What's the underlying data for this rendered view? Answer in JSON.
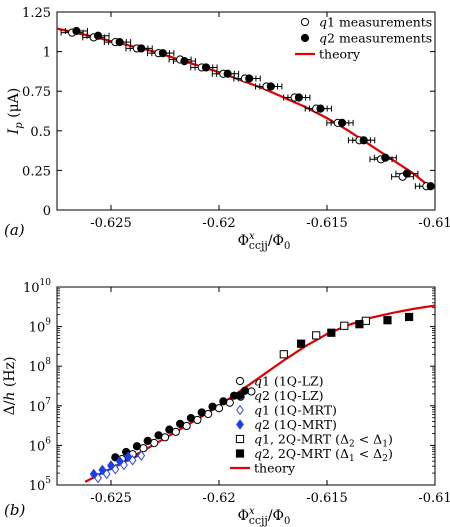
{
  "chart_data": [
    {
      "panel_label": "(a)",
      "type": "scatter",
      "xlabel": "Φ^x_ccjj/Φ0",
      "ylabel": "I_p (μA)",
      "xlim": [
        -0.6275,
        -0.61
      ],
      "ylim": [
        0,
        1.25
      ],
      "xticks": [
        -0.625,
        -0.62,
        -0.615,
        -0.61
      ],
      "xtick_labels": [
        "-0.625",
        "-0.62",
        "-0.615",
        "-0.61"
      ],
      "yticks": [
        0,
        0.25,
        0.5,
        0.75,
        1,
        1.25
      ],
      "ytick_labels": [
        "0",
        "0.25",
        "0.5",
        "0.75",
        "1",
        "1.25"
      ],
      "grid": false,
      "legend_position": "top-right",
      "series": [
        {
          "name": "q1 measurements",
          "marker": "open-circle",
          "color": "#000000",
          "points": [
            {
              "x": -0.6268,
              "y": 1.12
            },
            {
              "x": -0.6258,
              "y": 1.09
            },
            {
              "x": -0.6248,
              "y": 1.06
            },
            {
              "x": -0.6238,
              "y": 1.02
            },
            {
              "x": -0.6228,
              "y": 0.99
            },
            {
              "x": -0.6218,
              "y": 0.95
            },
            {
              "x": -0.6208,
              "y": 0.9
            },
            {
              "x": -0.6198,
              "y": 0.86
            },
            {
              "x": -0.6188,
              "y": 0.83
            },
            {
              "x": -0.6178,
              "y": 0.78
            },
            {
              "x": -0.6165,
              "y": 0.71
            },
            {
              "x": -0.6155,
              "y": 0.64
            },
            {
              "x": -0.6145,
              "y": 0.55
            },
            {
              "x": -0.6135,
              "y": 0.44
            },
            {
              "x": -0.6125,
              "y": 0.32
            },
            {
              "x": -0.6115,
              "y": 0.21
            },
            {
              "x": -0.6104,
              "y": 0.15
            }
          ]
        },
        {
          "name": "q2 measurements",
          "marker": "filled-circle",
          "color": "#000000",
          "points": [
            {
              "x": -0.6266,
              "y": 1.13
            },
            {
              "x": -0.6256,
              "y": 1.1
            },
            {
              "x": -0.6246,
              "y": 1.06
            },
            {
              "x": -0.6236,
              "y": 1.02
            },
            {
              "x": -0.6226,
              "y": 0.99
            },
            {
              "x": -0.6216,
              "y": 0.94
            },
            {
              "x": -0.6206,
              "y": 0.9
            },
            {
              "x": -0.6196,
              "y": 0.86
            },
            {
              "x": -0.6186,
              "y": 0.83
            },
            {
              "x": -0.6176,
              "y": 0.78
            },
            {
              "x": -0.6163,
              "y": 0.71
            },
            {
              "x": -0.6153,
              "y": 0.64
            },
            {
              "x": -0.6143,
              "y": 0.55
            },
            {
              "x": -0.6133,
              "y": 0.44
            },
            {
              "x": -0.6123,
              "y": 0.33
            },
            {
              "x": -0.6113,
              "y": 0.23
            },
            {
              "x": -0.6102,
              "y": 0.15
            }
          ]
        },
        {
          "name": "theory",
          "line": true,
          "color": "#e00000",
          "points": [
            {
              "x": -0.6275,
              "y": 1.145
            },
            {
              "x": -0.626,
              "y": 1.1
            },
            {
              "x": -0.6245,
              "y": 1.05
            },
            {
              "x": -0.623,
              "y": 1.0
            },
            {
              "x": -0.6215,
              "y": 0.935
            },
            {
              "x": -0.62,
              "y": 0.87
            },
            {
              "x": -0.619,
              "y": 0.82
            },
            {
              "x": -0.618,
              "y": 0.77
            },
            {
              "x": -0.617,
              "y": 0.71
            },
            {
              "x": -0.616,
              "y": 0.65
            },
            {
              "x": -0.615,
              "y": 0.58
            },
            {
              "x": -0.614,
              "y": 0.5
            },
            {
              "x": -0.613,
              "y": 0.41
            },
            {
              "x": -0.612,
              "y": 0.32
            },
            {
              "x": -0.611,
              "y": 0.23
            },
            {
              "x": -0.6105,
              "y": 0.175
            },
            {
              "x": -0.61,
              "y": 0.14
            }
          ]
        }
      ]
    },
    {
      "panel_label": "(b)",
      "type": "scatter",
      "xlabel": "Φ^x_ccjj/Φ0",
      "ylabel": "Δ/h (Hz)",
      "yscale": "log",
      "xlim": [
        -0.6275,
        -0.61
      ],
      "ylim": [
        100000,
        10000000000
      ],
      "xticks": [
        -0.625,
        -0.62,
        -0.615,
        -0.61
      ],
      "xtick_labels": [
        "-0.625",
        "-0.62",
        "-0.615",
        "-0.61"
      ],
      "yticks": [
        100000,
        1000000,
        10000000,
        100000000,
        1000000000,
        10000000000
      ],
      "ytick_exponents": [
        "5",
        "6",
        "7",
        "8",
        "9",
        "10"
      ],
      "ytick_base": "10",
      "grid": false,
      "legend_position": "bottom-right",
      "series": [
        {
          "name": "q1 (1Q-LZ)",
          "marker": "open-circle",
          "color": "#000000",
          "points": [
            {
              "x": -0.6245,
              "y": 450000
            },
            {
              "x": -0.624,
              "y": 600000
            },
            {
              "x": -0.6235,
              "y": 850000
            },
            {
              "x": -0.623,
              "y": 1150000
            },
            {
              "x": -0.6225,
              "y": 1600000
            },
            {
              "x": -0.622,
              "y": 2200000
            },
            {
              "x": -0.6215,
              "y": 3100000
            },
            {
              "x": -0.621,
              "y": 4400000
            },
            {
              "x": -0.6205,
              "y": 6200000
            },
            {
              "x": -0.62,
              "y": 8700000
            },
            {
              "x": -0.6195,
              "y": 12000000
            },
            {
              "x": -0.619,
              "y": 17000000
            },
            {
              "x": -0.6185,
              "y": 23000000
            }
          ]
        },
        {
          "name": "q2 (1Q-LZ)",
          "marker": "filled-circle",
          "color": "#000000",
          "points": [
            {
              "x": -0.6248,
              "y": 500000
            },
            {
              "x": -0.6243,
              "y": 680000
            },
            {
              "x": -0.6238,
              "y": 950000
            },
            {
              "x": -0.6233,
              "y": 1300000
            },
            {
              "x": -0.6228,
              "y": 1800000
            },
            {
              "x": -0.6223,
              "y": 2500000
            },
            {
              "x": -0.6218,
              "y": 3500000
            },
            {
              "x": -0.6213,
              "y": 4900000
            },
            {
              "x": -0.6208,
              "y": 6800000
            },
            {
              "x": -0.6203,
              "y": 9500000
            },
            {
              "x": -0.6198,
              "y": 13000000
            },
            {
              "x": -0.6193,
              "y": 18000000
            },
            {
              "x": -0.6188,
              "y": 24000000
            }
          ]
        },
        {
          "name": "q1 (1Q-MRT)",
          "marker": "open-diamond",
          "color": "#3344dd",
          "points": [
            {
              "x": -0.6256,
              "y": 150000
            },
            {
              "x": -0.6252,
              "y": 190000
            },
            {
              "x": -0.6248,
              "y": 250000
            },
            {
              "x": -0.6244,
              "y": 320000
            },
            {
              "x": -0.624,
              "y": 420000
            },
            {
              "x": -0.6236,
              "y": 550000
            }
          ]
        },
        {
          "name": "q2 (1Q-MRT)",
          "marker": "filled-diamond",
          "color": "#1a3ee8",
          "points": [
            {
              "x": -0.6258,
              "y": 190000
            },
            {
              "x": -0.6254,
              "y": 240000
            },
            {
              "x": -0.625,
              "y": 310000
            },
            {
              "x": -0.6246,
              "y": 400000
            },
            {
              "x": -0.6242,
              "y": 520000
            }
          ]
        },
        {
          "name": "q1, 2Q-MRT (Δ2 < Δ1)",
          "marker": "open-square",
          "color": "#000000",
          "points": [
            {
              "x": -0.617,
              "y": 200000000
            },
            {
              "x": -0.6155,
              "y": 600000000
            },
            {
              "x": -0.6142,
              "y": 1050000000
            },
            {
              "x": -0.6132,
              "y": 1400000000
            }
          ]
        },
        {
          "name": "q2, 2Q-MRT (Δ1 < Δ2)",
          "marker": "filled-square",
          "color": "#000000",
          "points": [
            {
              "x": -0.6162,
              "y": 370000000
            },
            {
              "x": -0.6148,
              "y": 700000000
            },
            {
              "x": -0.6135,
              "y": 1150000000
            },
            {
              "x": -0.6122,
              "y": 1450000000
            },
            {
              "x": -0.6112,
              "y": 1750000000
            }
          ]
        },
        {
          "name": "theory",
          "line": true,
          "color": "#e00000",
          "points": [
            {
              "x": -0.6262,
              "y": 120000
            },
            {
              "x": -0.625,
              "y": 260000
            },
            {
              "x": -0.624,
              "y": 520000
            },
            {
              "x": -0.623,
              "y": 1050000
            },
            {
              "x": -0.622,
              "y": 2200000
            },
            {
              "x": -0.621,
              "y": 4600000
            },
            {
              "x": -0.62,
              "y": 10000000
            },
            {
              "x": -0.619,
              "y": 24000000
            },
            {
              "x": -0.618,
              "y": 58000000
            },
            {
              "x": -0.617,
              "y": 140000000
            },
            {
              "x": -0.616,
              "y": 320000000
            },
            {
              "x": -0.615,
              "y": 650000000
            },
            {
              "x": -0.614,
              "y": 1100000000
            },
            {
              "x": -0.613,
              "y": 1650000000
            },
            {
              "x": -0.612,
              "y": 2200000000
            },
            {
              "x": -0.611,
              "y": 2800000000
            },
            {
              "x": -0.61,
              "y": 3400000000
            }
          ]
        },
        {
          "name": "",
          "line": true,
          "color": "#1a3ee8",
          "points": [
            {
              "x": -0.6258,
              "y": 160000
            },
            {
              "x": -0.625,
              "y": 260000
            },
            {
              "x": -0.6242,
              "y": 420000
            },
            {
              "x": -0.6236,
              "y": 600000
            }
          ]
        }
      ]
    }
  ]
}
